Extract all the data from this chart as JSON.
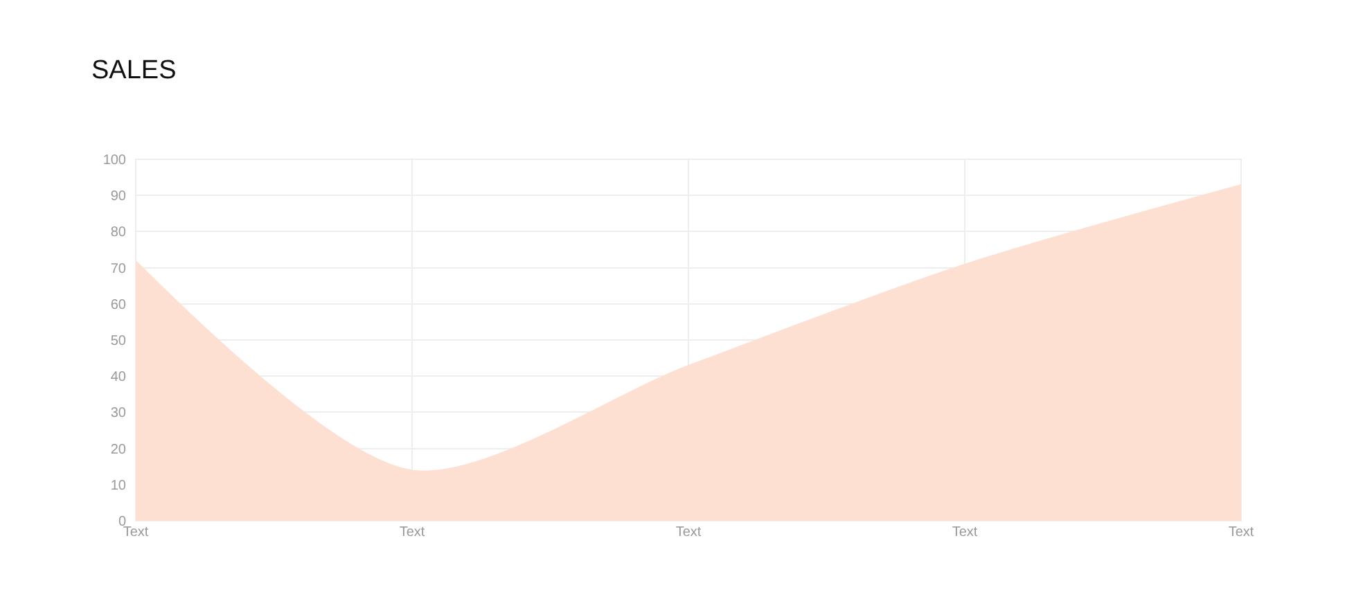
{
  "chart_data": {
    "type": "area",
    "title": "SALES",
    "categories": [
      "Text",
      "Text",
      "Text",
      "Text",
      "Text"
    ],
    "values": [
      72,
      14,
      43,
      71,
      93
    ],
    "color": "#fde0d2",
    "ylim": [
      0,
      100
    ],
    "yticks": [
      0,
      10,
      20,
      30,
      40,
      50,
      60,
      70,
      80,
      90,
      100
    ],
    "grid": true
  }
}
